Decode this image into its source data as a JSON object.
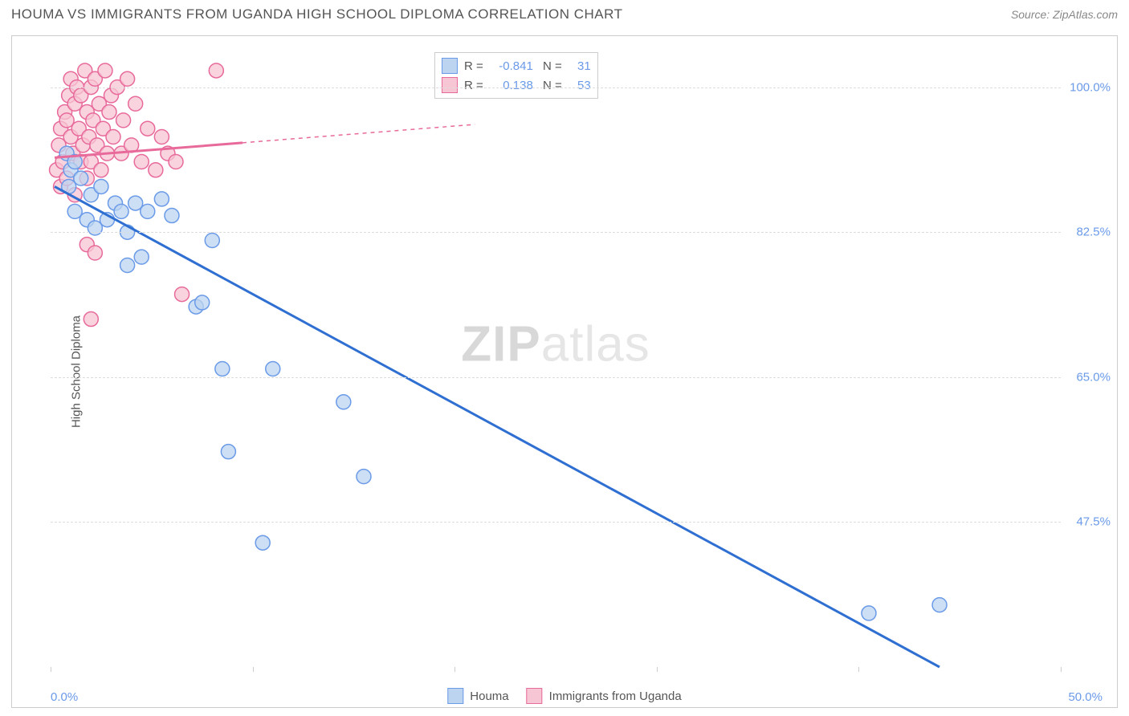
{
  "title": "HOUMA VS IMMIGRANTS FROM UGANDA HIGH SCHOOL DIPLOMA CORRELATION CHART",
  "source_label": "Source: ZipAtlas.com",
  "watermark": {
    "zip": "ZIP",
    "atlas": "atlas"
  },
  "chart": {
    "type": "scatter",
    "ylabel": "High School Diploma",
    "xlim": [
      0,
      50
    ],
    "ylim": [
      30,
      105
    ],
    "xticks": [
      0,
      10,
      20,
      30,
      40,
      50
    ],
    "x_tick_labels": {
      "min": "0.0%",
      "max": "50.0%"
    },
    "yticks": [
      47.5,
      65.0,
      82.5,
      100.0
    ],
    "ytick_labels": [
      "47.5%",
      "65.0%",
      "82.5%",
      "100.0%"
    ],
    "grid_color": "#dddddd",
    "background_color": "#ffffff",
    "marker_radius": 9,
    "marker_stroke_width": 1.5,
    "series": [
      {
        "name": "Houma",
        "fill": "#bcd4f0",
        "stroke": "#6a9ae8",
        "line_color": "#2f6fd1",
        "line_width": 3,
        "line_dash_after_x": null,
        "R": "-0.841",
        "N": "31",
        "trend": {
          "x1": 0.2,
          "y1": 88.0,
          "x2": 44.0,
          "y2": 30.0
        },
        "points": [
          {
            "x": 0.8,
            "y": 92
          },
          {
            "x": 0.9,
            "y": 88
          },
          {
            "x": 1.0,
            "y": 90
          },
          {
            "x": 1.2,
            "y": 91
          },
          {
            "x": 1.2,
            "y": 85
          },
          {
            "x": 1.5,
            "y": 89
          },
          {
            "x": 1.8,
            "y": 84
          },
          {
            "x": 2.0,
            "y": 87
          },
          {
            "x": 2.2,
            "y": 83
          },
          {
            "x": 2.5,
            "y": 88
          },
          {
            "x": 2.8,
            "y": 84
          },
          {
            "x": 3.2,
            "y": 86
          },
          {
            "x": 3.5,
            "y": 85
          },
          {
            "x": 3.8,
            "y": 82.5
          },
          {
            "x": 4.2,
            "y": 86
          },
          {
            "x": 4.8,
            "y": 85
          },
          {
            "x": 3.8,
            "y": 78.5
          },
          {
            "x": 4.5,
            "y": 79.5
          },
          {
            "x": 5.5,
            "y": 86.5
          },
          {
            "x": 6.0,
            "y": 84.5
          },
          {
            "x": 7.2,
            "y": 73.5
          },
          {
            "x": 7.5,
            "y": 74
          },
          {
            "x": 8.0,
            "y": 81.5
          },
          {
            "x": 8.5,
            "y": 66
          },
          {
            "x": 8.8,
            "y": 56
          },
          {
            "x": 11.0,
            "y": 66
          },
          {
            "x": 10.5,
            "y": 45
          },
          {
            "x": 14.5,
            "y": 62
          },
          {
            "x": 15.5,
            "y": 53
          },
          {
            "x": 40.5,
            "y": 36.5
          },
          {
            "x": 44.0,
            "y": 37.5
          }
        ]
      },
      {
        "name": "Immigrants from Uganda",
        "fill": "#f7c6d4",
        "stroke": "#e86a9a",
        "line_color": "#e86a9a",
        "line_width": 3,
        "line_dash_after_x": 9.5,
        "R": "0.138",
        "N": "53",
        "trend": {
          "x1": 0.2,
          "y1": 91.5,
          "x2": 21.0,
          "y2": 95.5
        },
        "points": [
          {
            "x": 0.3,
            "y": 90
          },
          {
            "x": 0.4,
            "y": 93
          },
          {
            "x": 0.5,
            "y": 88
          },
          {
            "x": 0.5,
            "y": 95
          },
          {
            "x": 0.6,
            "y": 91
          },
          {
            "x": 0.7,
            "y": 97
          },
          {
            "x": 0.8,
            "y": 96
          },
          {
            "x": 0.8,
            "y": 89
          },
          {
            "x": 0.9,
            "y": 99
          },
          {
            "x": 1.0,
            "y": 94
          },
          {
            "x": 1.0,
            "y": 101
          },
          {
            "x": 1.1,
            "y": 92
          },
          {
            "x": 1.2,
            "y": 98
          },
          {
            "x": 1.2,
            "y": 87
          },
          {
            "x": 1.3,
            "y": 100
          },
          {
            "x": 1.4,
            "y": 95
          },
          {
            "x": 1.5,
            "y": 91
          },
          {
            "x": 1.5,
            "y": 99
          },
          {
            "x": 1.6,
            "y": 93
          },
          {
            "x": 1.7,
            "y": 102
          },
          {
            "x": 1.8,
            "y": 97
          },
          {
            "x": 1.8,
            "y": 89
          },
          {
            "x": 1.9,
            "y": 94
          },
          {
            "x": 2.0,
            "y": 100
          },
          {
            "x": 2.0,
            "y": 91
          },
          {
            "x": 2.1,
            "y": 96
          },
          {
            "x": 2.2,
            "y": 101
          },
          {
            "x": 2.3,
            "y": 93
          },
          {
            "x": 2.4,
            "y": 98
          },
          {
            "x": 2.5,
            "y": 90
          },
          {
            "x": 2.6,
            "y": 95
          },
          {
            "x": 2.7,
            "y": 102
          },
          {
            "x": 2.8,
            "y": 92
          },
          {
            "x": 2.9,
            "y": 97
          },
          {
            "x": 3.0,
            "y": 99
          },
          {
            "x": 3.1,
            "y": 94
          },
          {
            "x": 3.3,
            "y": 100
          },
          {
            "x": 3.5,
            "y": 92
          },
          {
            "x": 3.6,
            "y": 96
          },
          {
            "x": 3.8,
            "y": 101
          },
          {
            "x": 4.0,
            "y": 93
          },
          {
            "x": 4.2,
            "y": 98
          },
          {
            "x": 4.5,
            "y": 91
          },
          {
            "x": 4.8,
            "y": 95
          },
          {
            "x": 5.2,
            "y": 90
          },
          {
            "x": 5.5,
            "y": 94
          },
          {
            "x": 5.8,
            "y": 92
          },
          {
            "x": 6.2,
            "y": 91
          },
          {
            "x": 1.8,
            "y": 81
          },
          {
            "x": 2.2,
            "y": 80
          },
          {
            "x": 2.0,
            "y": 72
          },
          {
            "x": 6.5,
            "y": 75
          },
          {
            "x": 8.2,
            "y": 102
          }
        ]
      }
    ],
    "bottom_legend": [
      {
        "label": "Houma",
        "fill": "#bcd4f0",
        "stroke": "#6a9ae8"
      },
      {
        "label": "Immigrants from Uganda",
        "fill": "#f7c6d4",
        "stroke": "#e86a9a"
      }
    ]
  }
}
